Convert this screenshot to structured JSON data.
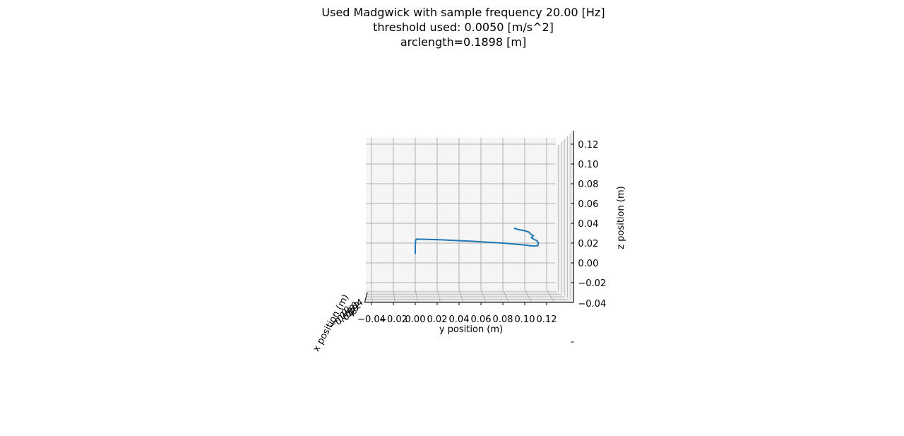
{
  "chart_data": {
    "type": "line",
    "projection": "3d",
    "title_lines": [
      "Used Madgwick with sample frequency 20.00 [Hz]",
      "threshold used: 0.0050 [m/s^2]",
      "arclength=0.1898 [m]"
    ],
    "xlabel": "x position (m)",
    "ylabel": "y position (m)",
    "zlabel": "z position (m)",
    "y_ticks": [
      -0.04,
      -0.02,
      0.0,
      0.02,
      0.04,
      0.06,
      0.08,
      0.1,
      0.12
    ],
    "y_tick_labels": [
      "−0.04",
      "−0.02",
      "0.00",
      "0.02",
      "0.04",
      "0.06",
      "0.08",
      "0.10",
      "0.12"
    ],
    "z_ticks": [
      -0.04,
      -0.02,
      0.0,
      0.02,
      0.04,
      0.06,
      0.08,
      0.1,
      0.12
    ],
    "z_tick_labels": [
      "−0.04",
      "−0.02",
      "0.00",
      "0.02",
      "0.04",
      "0.06",
      "0.08",
      "0.10",
      "0.12"
    ],
    "x_tick_labels_note": "x-axis tick labels overlap and are illegible",
    "x_tick_labels": [
      "−0.04",
      "−0.02",
      "0.00",
      "0.02",
      "0.04"
    ],
    "ylim": [
      -0.045,
      0.128
    ],
    "zlim": [
      -0.042,
      0.128
    ],
    "grid": true,
    "series": [
      {
        "color": "#1f77b4",
        "y": [
          0.0,
          0.0,
          0.0001,
          0.0004,
          0.001,
          0.02,
          0.05,
          0.08,
          0.1,
          0.108,
          0.112,
          0.1125,
          0.111,
          0.108,
          0.106,
          0.108,
          0.106,
          0.104,
          0.1,
          0.095,
          0.09
        ],
        "z": [
          0.009,
          0.015,
          0.02,
          0.023,
          0.024,
          0.0235,
          0.022,
          0.02,
          0.018,
          0.017,
          0.0175,
          0.02,
          0.0225,
          0.024,
          0.0255,
          0.0275,
          0.0285,
          0.031,
          0.0325,
          0.0335,
          0.035
        ]
      }
    ]
  }
}
